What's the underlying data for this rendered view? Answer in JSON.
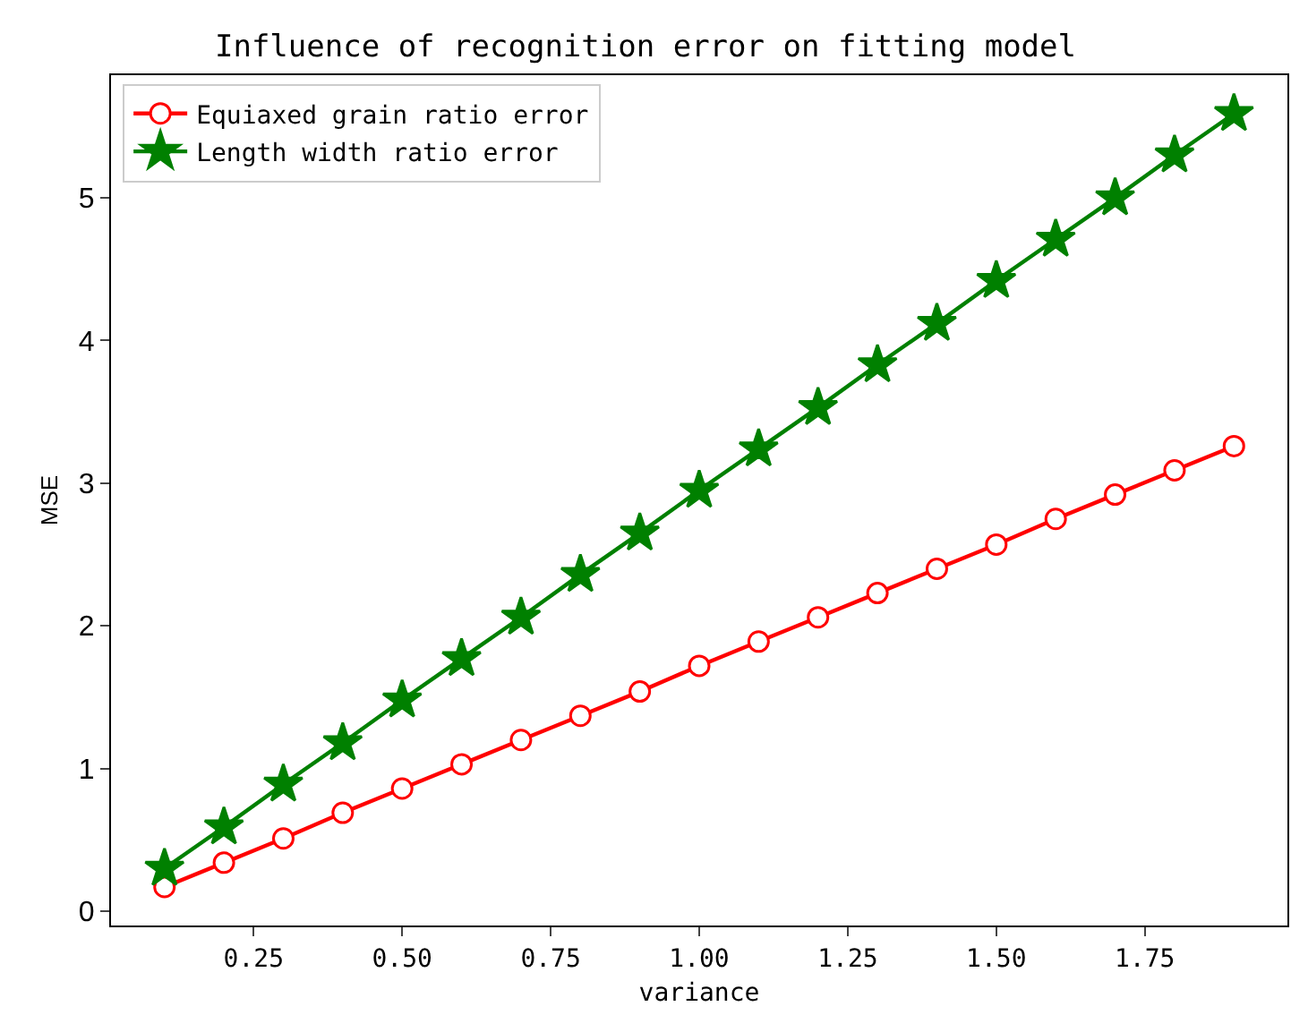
{
  "chart_data": {
    "type": "line",
    "title": "Influence of recognition error on fitting model",
    "xlabel": "variance",
    "ylabel": "MSE",
    "x": [
      0.1,
      0.2,
      0.3,
      0.4,
      0.5,
      0.6,
      0.7,
      0.8,
      0.9,
      1.0,
      1.1,
      1.2,
      1.3,
      1.4,
      1.5,
      1.6,
      1.7,
      1.8,
      1.9
    ],
    "series": [
      {
        "name": "Equiaxed grain ratio error",
        "color": "#ff0000",
        "marker": "circle",
        "values": [
          0.17,
          0.34,
          0.51,
          0.69,
          0.86,
          1.03,
          1.2,
          1.37,
          1.54,
          1.72,
          1.89,
          2.06,
          2.23,
          2.4,
          2.57,
          2.75,
          2.92,
          3.09,
          3.26
        ]
      },
      {
        "name": "Length width ratio error",
        "color": "#008000",
        "marker": "star",
        "values": [
          0.3,
          0.59,
          0.89,
          1.18,
          1.48,
          1.77,
          2.06,
          2.36,
          2.65,
          2.95,
          3.24,
          3.53,
          3.83,
          4.12,
          4.42,
          4.71,
          5.0,
          5.3,
          5.59
        ]
      }
    ],
    "xlim": [
      0.01,
      1.99
    ],
    "xticks": [
      {
        "value": 0.25,
        "label": "0.25"
      },
      {
        "value": 0.5,
        "label": "0.50"
      },
      {
        "value": 0.75,
        "label": "0.75"
      },
      {
        "value": 1.0,
        "label": "1.00"
      },
      {
        "value": 1.25,
        "label": "1.25"
      },
      {
        "value": 1.5,
        "label": "1.50"
      },
      {
        "value": 1.75,
        "label": "1.75"
      }
    ],
    "ylim": [
      -0.1,
      5.86
    ],
    "yticks": [
      0,
      1,
      2,
      3,
      4,
      5
    ],
    "grid": false,
    "legend": "top left",
    "line_style": "solid"
  }
}
